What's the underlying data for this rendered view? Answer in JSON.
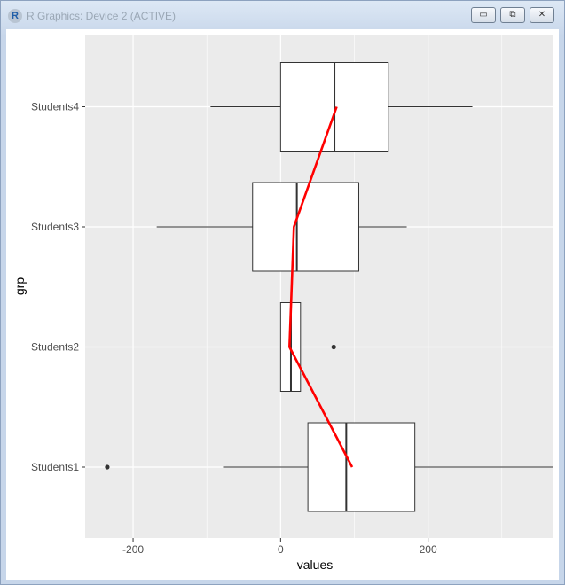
{
  "window": {
    "title": "R Graphics: Device 2 (ACTIVE)",
    "icon": "R",
    "buttons": {
      "minimize": "▭",
      "maximize": "⧉",
      "close": "✕"
    }
  },
  "chart_data": {
    "type": "boxplot",
    "orientation": "horizontal",
    "xlabel": "values",
    "ylabel": "grp",
    "xlim": [
      -265,
      370
    ],
    "x_ticks": [
      -200,
      0,
      200
    ],
    "x_tick_labels": [
      "-200",
      "0",
      "200"
    ],
    "categories": [
      "Students1",
      "Students2",
      "Students3",
      "Students4"
    ],
    "boxes": [
      {
        "name": "Students1",
        "whisker_low": -78,
        "q1": 37,
        "median": 89,
        "q3": 182,
        "whisker_high": 370,
        "outliers": [
          -235
        ]
      },
      {
        "name": "Students2",
        "whisker_low": -15,
        "q1": 0,
        "median": 14,
        "q3": 27,
        "whisker_high": 42,
        "outliers": [
          72
        ]
      },
      {
        "name": "Students3",
        "whisker_low": -168,
        "q1": -38,
        "median": 22,
        "q3": 106,
        "whisker_high": 171,
        "outliers": []
      },
      {
        "name": "Students4",
        "whisker_low": -95,
        "q1": 0,
        "median": 73,
        "q3": 146,
        "whisker_high": 260,
        "outliers": []
      }
    ],
    "line": {
      "color": "#ff0000",
      "points": [
        [
          97,
          "Students1"
        ],
        [
          12,
          "Students2"
        ],
        [
          18,
          "Students3"
        ],
        [
          76,
          "Students4"
        ]
      ]
    },
    "colors": {
      "panel": "#ebebeb",
      "grid": "#ffffff",
      "box_fill": "#ffffff",
      "box_line": "#333333",
      "line": "#ff0000"
    },
    "grid": true
  }
}
